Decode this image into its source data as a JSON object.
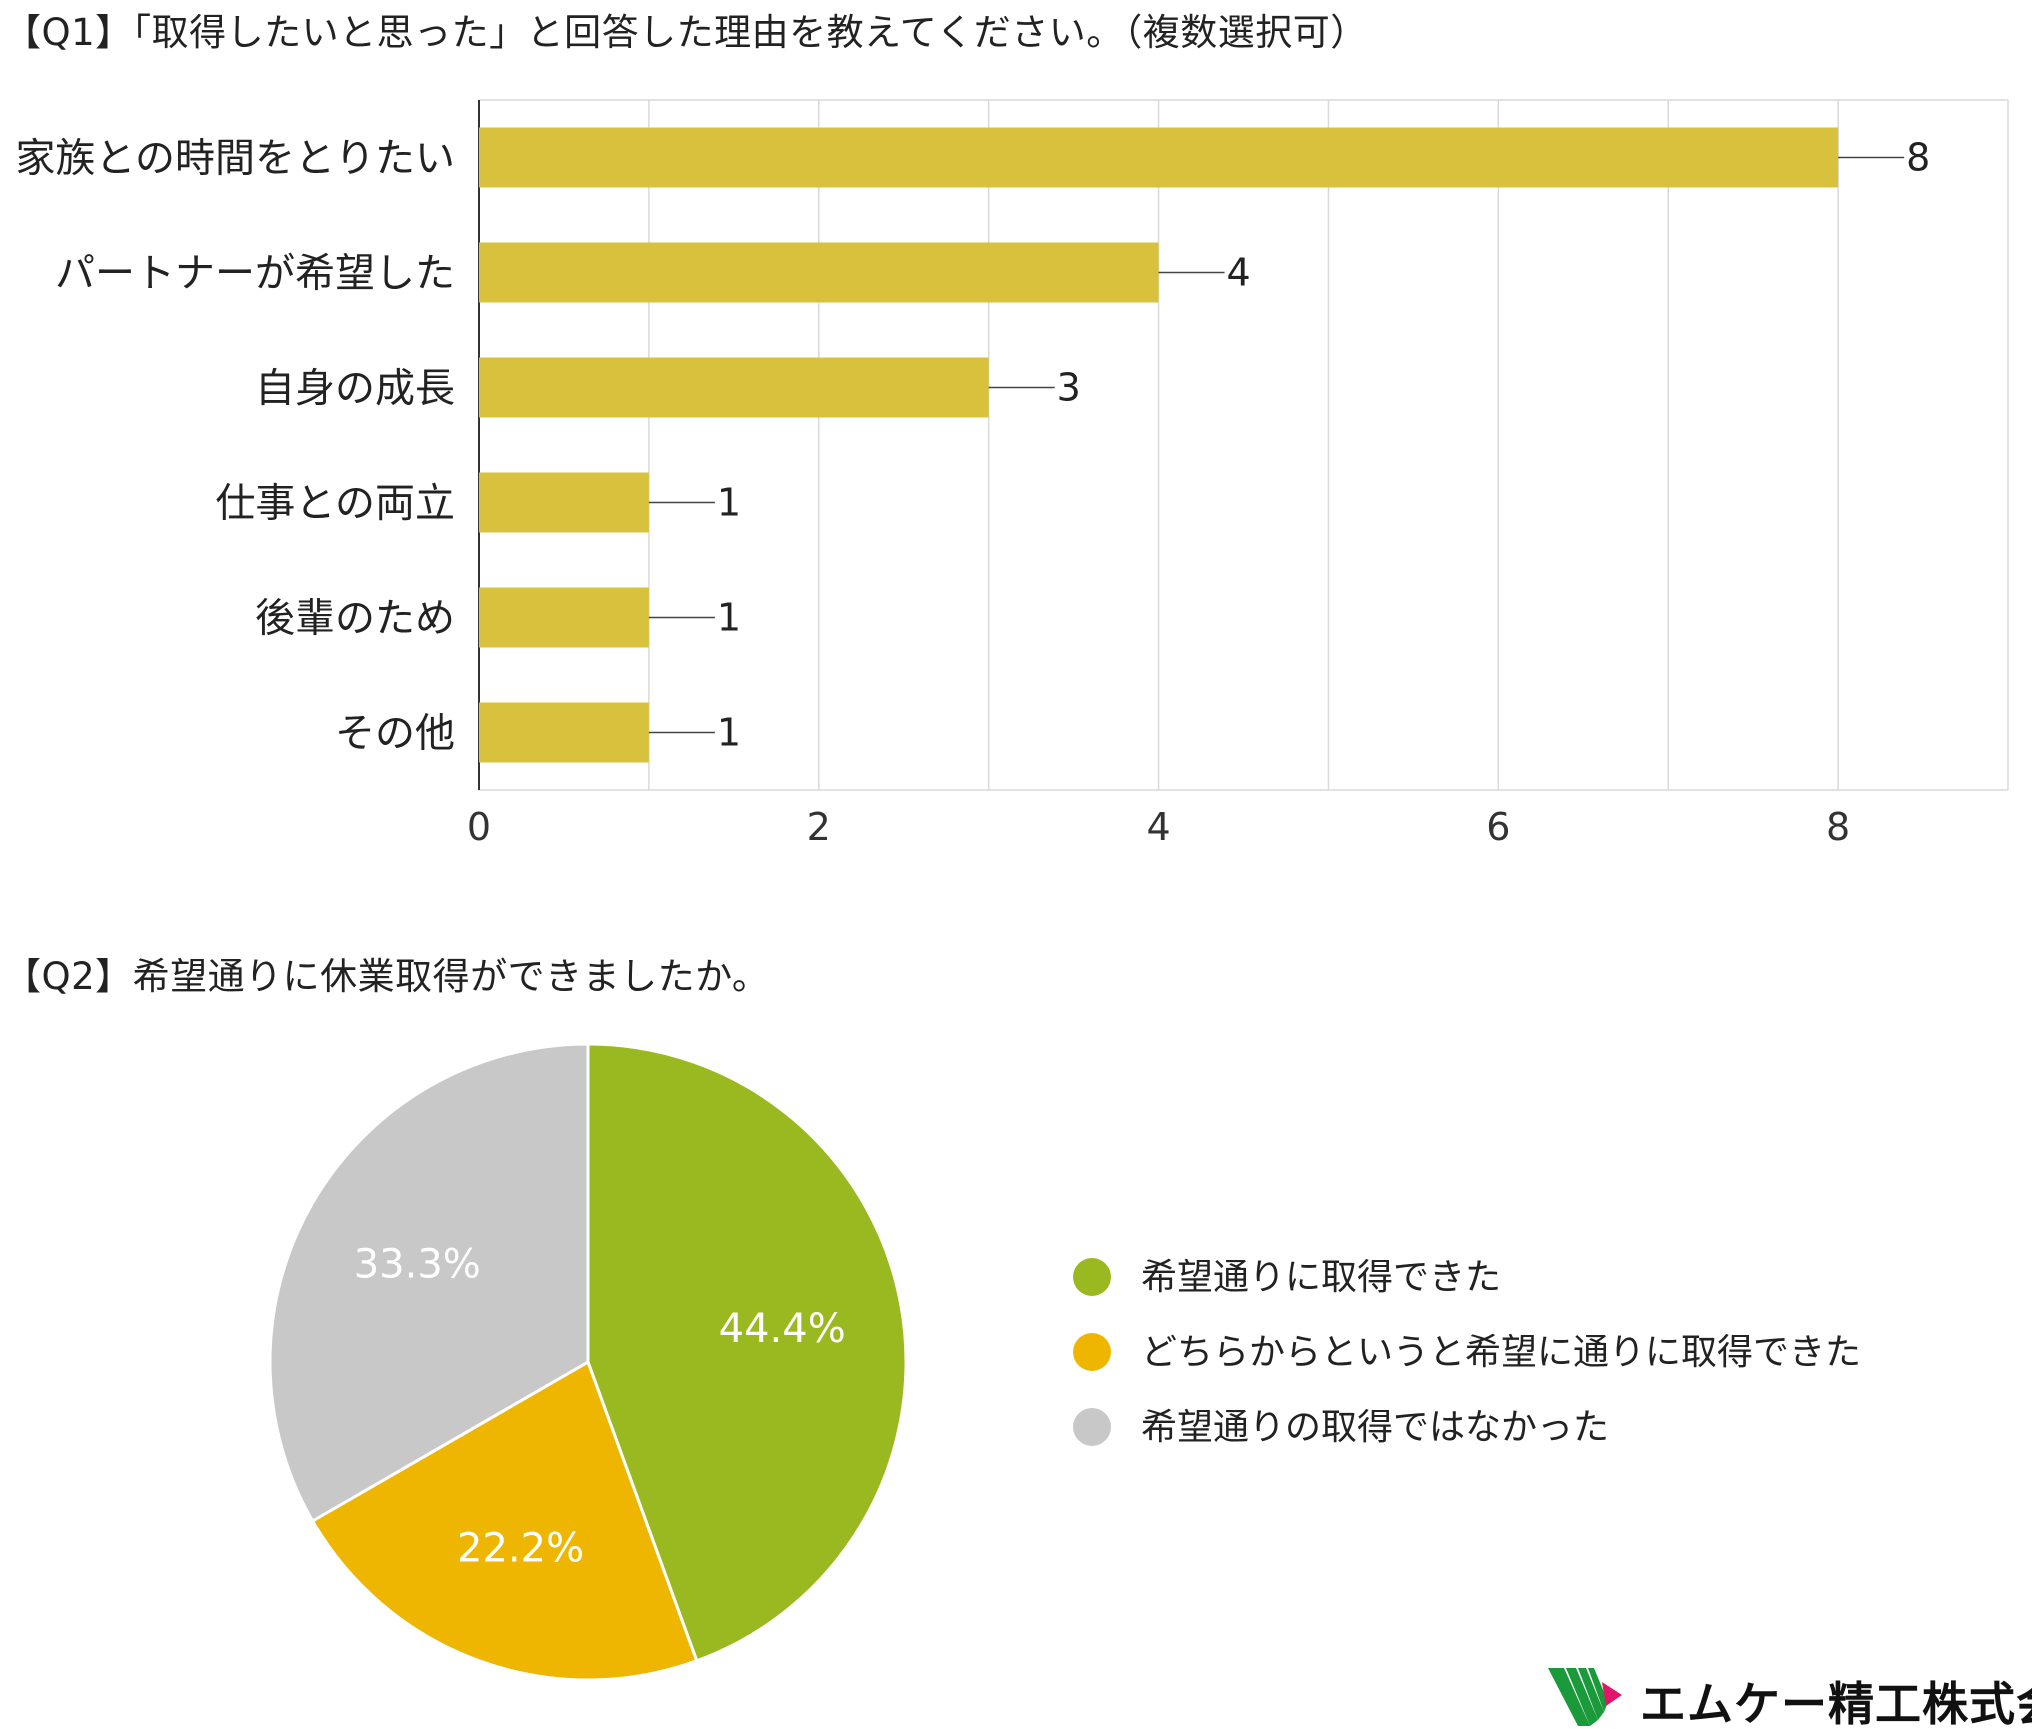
{
  "q1": {
    "title": "【Q1】「取得したいと思った」と回答した理由を教えてください。（複数選択可）"
  },
  "q2": {
    "title": "【Q2】希望通りに休業取得ができましたか。"
  },
  "logo": {
    "company": "エムケー精工株式会社",
    "colors": [
      "#1a9a3a",
      "#e2156b"
    ]
  },
  "chart_data": [
    {
      "type": "bar",
      "orientation": "horizontal",
      "title": "",
      "categories": [
        "家族との時間をとりたい",
        "パートナーが希望した",
        "自身の成長",
        "仕事との両立",
        "後輩のため",
        "その他"
      ],
      "values": [
        8,
        4,
        3,
        1,
        1,
        1
      ],
      "data_labels": [
        "8",
        "4",
        "3",
        "1",
        "1",
        "1"
      ],
      "xlim": [
        0,
        9
      ],
      "ticks": [
        0,
        2,
        4,
        6,
        8
      ],
      "tick_labels": [
        "0",
        "2",
        "4",
        "6",
        "8"
      ],
      "grid": true,
      "bar_color": "#d8c13d"
    },
    {
      "type": "pie",
      "title": "",
      "slices": [
        {
          "label": "希望通りに取得できた",
          "value": 44.4,
          "display": "44.4%",
          "color": "#9ab81f"
        },
        {
          "label": "どちらからというと希望に通りに取得できた",
          "value": 22.2,
          "display": "22.2%",
          "color": "#eeb600"
        },
        {
          "label": "希望通りの取得ではなかった",
          "value": 33.3,
          "display": "33.3%",
          "color": "#c8c8c8"
        }
      ],
      "legend_position": "right"
    }
  ]
}
